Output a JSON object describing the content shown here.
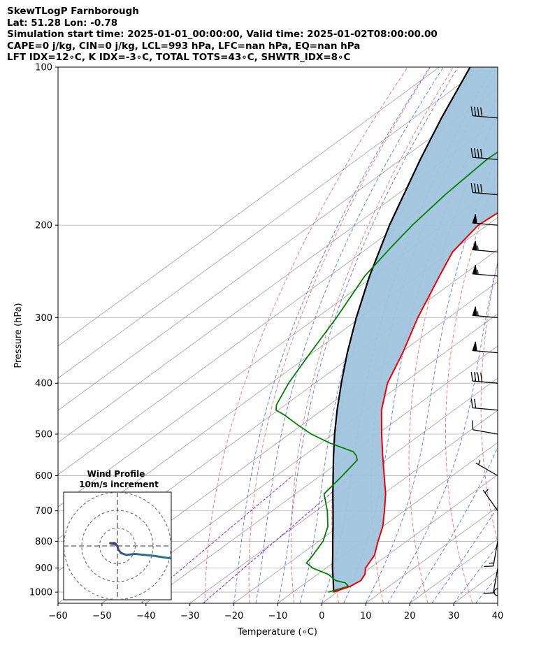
{
  "title": {
    "line1": "SkewTLogP Farnborough",
    "line2": "Lat: 51.28   Lon: -0.78",
    "line3": "Simulation start time: 2025-01-01_00:00:00, Valid time: 2025-01-02T08:00:00.00",
    "line4": "CAPE=0 j/kg, CIN=0 j/kg, LCL=993 hPa, LFC=nan hPa, EQ=nan hPa",
    "line5": "LFT IDX=12∘C, K IDX=-3∘C, TOTAL TOTS=43∘C, SHWTR_IDX=8∘C"
  },
  "chart_data": {
    "type": "skewt",
    "xlabel": "Temperature (∘C)",
    "ylabel": "Pressure (hPa)",
    "xlim": [
      -60,
      40
    ],
    "ylim": [
      1050,
      100
    ],
    "yscale": "log",
    "xticks": [
      -60,
      -50,
      -40,
      -30,
      -20,
      -10,
      0,
      10,
      20,
      30,
      40
    ],
    "yticks": [
      100,
      200,
      300,
      400,
      500,
      600,
      700,
      800,
      900,
      1000
    ],
    "grid": true,
    "colors": {
      "temperature": "#ee0000",
      "dewpoint": "#008000",
      "parcel": "#000000",
      "fill": "#a0c4de",
      "dry_adiabat": "#ff5555",
      "moist_adiabat": "#3355ff",
      "mixing_ratio": "#9922cc",
      "isotherm": "#9e9e9e"
    },
    "temperature": {
      "pressure": [
        1000,
        975,
        950,
        925,
        900,
        850,
        800,
        750,
        700,
        650,
        600,
        550,
        500,
        450,
        400,
        350,
        300,
        250,
        225,
        200,
        175,
        150,
        125,
        110,
        100
      ],
      "values": [
        -0.8,
        1.2,
        1.8,
        0.8,
        -1.0,
        -3.0,
        -6.5,
        -10.0,
        -14.5,
        -19.5,
        -25.5,
        -32.0,
        -39.0,
        -46.5,
        -53.5,
        -59.5,
        -67.0,
        -75.0,
        -79.5,
        -82.0,
        -80.5,
        -79.5,
        -82.0,
        -86.5,
        -89.5
      ]
    },
    "dewpoint": {
      "pressure": [
        1000,
        975,
        960,
        950,
        925,
        900,
        880,
        850,
        800,
        750,
        700,
        650,
        600,
        560,
        550,
        540,
        520,
        500,
        480,
        460,
        450,
        440,
        400,
        350,
        300,
        250,
        220,
        200,
        175,
        150,
        125,
        110,
        100
      ],
      "values": [
        -2.0,
        0.8,
        -1.0,
        -4.0,
        -7.5,
        -13.0,
        -16.0,
        -17.0,
        -19.0,
        -22.5,
        -27.5,
        -33.5,
        -35.0,
        -36.5,
        -38.0,
        -40.0,
        -48.0,
        -55.0,
        -61.0,
        -67.0,
        -70.5,
        -72.0,
        -76.0,
        -80.5,
        -85.5,
        -92.0,
        -95.0,
        -97.0,
        -99.0,
        -100.5,
        -99.5,
        -98.0,
        -99.0
      ]
    },
    "parcel": {
      "pressure": [
        1000,
        990,
        950,
        900,
        850,
        800,
        750,
        700,
        650,
        600,
        550,
        500,
        450,
        400,
        350,
        300,
        250,
        200,
        150,
        125,
        100
      ],
      "values": [
        -0.8,
        -1.5,
        -4.5,
        -8.5,
        -12.5,
        -16.8,
        -21.3,
        -26.2,
        -31.5,
        -37.1,
        -43.2,
        -49.7,
        -56.6,
        -64.0,
        -72.1,
        -81.0,
        -90.9,
        -102.2,
        -115.6,
        -123.7,
        -133.0
      ]
    },
    "wind_barbs": [
      {
        "pressure": 100,
        "speed": 35,
        "direction": 280
      },
      {
        "pressure": 125,
        "speed": 40,
        "direction": 275
      },
      {
        "pressure": 150,
        "speed": 40,
        "direction": 275
      },
      {
        "pressure": 175,
        "speed": 40,
        "direction": 275
      },
      {
        "pressure": 200,
        "speed": 50,
        "direction": 275
      },
      {
        "pressure": 225,
        "speed": 55,
        "direction": 275
      },
      {
        "pressure": 250,
        "speed": 55,
        "direction": 275
      },
      {
        "pressure": 300,
        "speed": 55,
        "direction": 275
      },
      {
        "pressure": 350,
        "speed": 50,
        "direction": 275
      },
      {
        "pressure": 400,
        "speed": 40,
        "direction": 275
      },
      {
        "pressure": 450,
        "speed": 20,
        "direction": 275
      },
      {
        "pressure": 500,
        "speed": 10,
        "direction": 280
      },
      {
        "pressure": 600,
        "speed": 5,
        "direction": 300
      },
      {
        "pressure": 700,
        "speed": 5,
        "direction": 325
      },
      {
        "pressure": 800,
        "speed": 15,
        "direction": 190
      },
      {
        "pressure": 900,
        "speed": 10,
        "direction": 190
      },
      {
        "pressure": 1000,
        "speed": 0,
        "direction": 0
      }
    ],
    "hodograph": {
      "title_line1": "Wind Profile",
      "title_line2": "10m/s increment",
      "rings": [
        10,
        20,
        30
      ],
      "u": [
        0,
        -1,
        -1.5,
        -2,
        -4,
        -1,
        0,
        0.5,
        2,
        5,
        10,
        20,
        30,
        40,
        55
      ],
      "v": [
        0,
        -1,
        -1.5,
        -1.5,
        -1.5,
        -1,
        0,
        2,
        4,
        5,
        4.5,
        5.5,
        7,
        9,
        12
      ]
    }
  }
}
